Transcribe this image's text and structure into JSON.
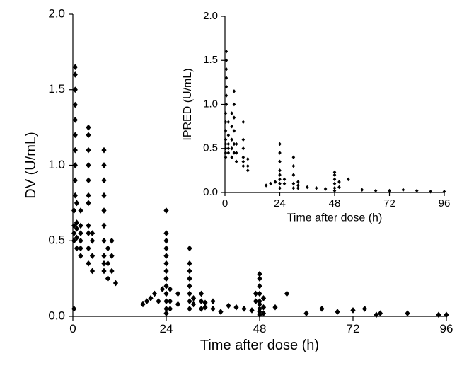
{
  "chart_data": [
    {
      "type": "scatter",
      "x_label": "Time after dose (h)",
      "y_label": "DV (U/mL)",
      "color": "#000000",
      "xlim": [
        0,
        96
      ],
      "xticks": [
        0,
        24,
        48,
        72,
        96
      ],
      "ylim": [
        0,
        2
      ],
      "yticks": [
        {
          "value": 0,
          "label": "0.0"
        },
        {
          "value": 0.5,
          "label": "0.5"
        },
        {
          "value": 1,
          "label": "1.0"
        },
        {
          "value": 1.5,
          "label": "1.5"
        },
        {
          "value": 2,
          "label": "2.0"
        }
      ],
      "x": [
        0.3,
        0.3,
        0.3,
        0.3,
        0.3,
        0.6,
        0.6,
        0.6,
        0.6,
        0.6,
        0.6,
        0.6,
        0.6,
        0.6,
        0.6,
        1,
        1,
        1,
        1,
        1,
        2,
        2,
        2,
        2,
        2,
        2,
        4,
        4,
        4,
        4,
        4,
        4,
        4,
        4,
        4,
        4,
        4,
        5,
        5,
        5,
        5,
        8,
        8,
        8,
        8,
        8,
        8,
        8,
        8,
        8,
        8,
        9,
        9,
        9,
        10,
        10,
        10,
        11,
        18,
        19,
        20,
        21,
        22,
        23,
        24,
        24,
        24,
        24,
        24,
        24,
        24,
        24,
        24,
        24,
        24,
        24,
        24,
        25,
        25,
        25,
        27,
        27,
        30,
        30,
        30,
        30,
        30,
        30,
        30,
        30,
        31,
        31,
        33,
        33,
        33,
        34,
        34,
        36,
        36,
        38,
        40,
        42,
        44,
        46,
        47,
        47,
        48,
        48,
        48,
        48,
        48,
        48,
        48,
        48,
        48,
        49,
        49,
        49,
        52,
        55,
        60,
        64,
        68,
        72,
        75,
        78,
        79,
        86,
        94,
        96
      ],
      "values": [
        0.05,
        0.5,
        0.55,
        0.6,
        0.7,
        0.8,
        0.9,
        1.0,
        1.1,
        1.2,
        1.3,
        1.4,
        1.5,
        1.6,
        1.65,
        0.45,
        0.52,
        0.58,
        0.62,
        0.75,
        0.5,
        0.55,
        0.6,
        0.7,
        0.45,
        0.4,
        0.35,
        0.45,
        0.55,
        0.6,
        0.75,
        0.8,
        0.9,
        1.0,
        1.1,
        1.2,
        1.25,
        0.3,
        0.4,
        0.5,
        0.55,
        0.3,
        0.35,
        0.4,
        0.5,
        0.6,
        0.7,
        0.8,
        0.9,
        1.0,
        1.1,
        0.25,
        0.35,
        0.45,
        0.3,
        0.4,
        0.5,
        0.22,
        0.08,
        0.1,
        0.12,
        0.15,
        0.1,
        0.18,
        0.02,
        0.05,
        0.1,
        0.15,
        0.2,
        0.25,
        0.3,
        0.35,
        0.4,
        0.45,
        0.5,
        0.55,
        0.7,
        0.05,
        0.1,
        0.18,
        0.08,
        0.15,
        0.05,
        0.1,
        0.15,
        0.2,
        0.25,
        0.3,
        0.35,
        0.45,
        0.08,
        0.12,
        0.05,
        0.1,
        0.15,
        0.06,
        0.09,
        0.05,
        0.1,
        0.03,
        0.07,
        0.06,
        0.05,
        0.04,
        0.1,
        0.15,
        0.01,
        0.03,
        0.05,
        0.08,
        0.1,
        0.15,
        0.2,
        0.25,
        0.28,
        0.02,
        0.06,
        0.12,
        0.06,
        0.15,
        0.02,
        0.05,
        0.03,
        0.04,
        0.05,
        0.01,
        0.02,
        0.02,
        0.01,
        0.01
      ]
    },
    {
      "type": "scatter",
      "x_label": "Time after dose (h)",
      "y_label": "IPRED (U/mL)",
      "color": "#000000",
      "xlim": [
        0,
        96
      ],
      "xticks": [
        0,
        24,
        48,
        72,
        96
      ],
      "ylim": [
        0,
        2
      ],
      "yticks": [
        {
          "value": 0,
          "label": "0.0"
        },
        {
          "value": 0.5,
          "label": "0.5"
        },
        {
          "value": 1,
          "label": "1.0"
        },
        {
          "value": 1.5,
          "label": "1.5"
        },
        {
          "value": 2,
          "label": "2.0"
        }
      ],
      "x": [
        0.3,
        0.3,
        0.3,
        0.3,
        0.3,
        0.3,
        0.3,
        0.3,
        0.6,
        0.6,
        0.6,
        0.6,
        0.6,
        0.6,
        0.6,
        1.5,
        1.5,
        1.5,
        1.5,
        1.5,
        3,
        3,
        3,
        3,
        3,
        4,
        4,
        4,
        4,
        4,
        4,
        5,
        5,
        5,
        8,
        8,
        8,
        8,
        8,
        8,
        10,
        10,
        10,
        18,
        20,
        22,
        24,
        24,
        24,
        24,
        24,
        24,
        24,
        24,
        26,
        26,
        30,
        30,
        30,
        30,
        30,
        32,
        32,
        32,
        36,
        40,
        44,
        48,
        48,
        48,
        48,
        48,
        48,
        50,
        50,
        54,
        60,
        66,
        72,
        78,
        84,
        90,
        96
      ],
      "values": [
        0.4,
        0.45,
        0.5,
        0.55,
        0.6,
        0.7,
        0.8,
        0.9,
        1.0,
        1.1,
        1.2,
        1.3,
        1.4,
        1.5,
        1.6,
        0.45,
        0.5,
        0.55,
        0.65,
        0.8,
        0.4,
        0.5,
        0.6,
        0.75,
        0.9,
        0.45,
        0.55,
        0.7,
        0.85,
        1.0,
        1.15,
        0.35,
        0.45,
        0.55,
        0.3,
        0.35,
        0.4,
        0.5,
        0.6,
        0.8,
        0.25,
        0.3,
        0.38,
        0.08,
        0.1,
        0.12,
        0.05,
        0.1,
        0.15,
        0.2,
        0.25,
        0.35,
        0.45,
        0.55,
        0.1,
        0.15,
        0.05,
        0.1,
        0.2,
        0.3,
        0.4,
        0.05,
        0.08,
        0.12,
        0.06,
        0.05,
        0.04,
        0.02,
        0.05,
        0.1,
        0.15,
        0.2,
        0.23,
        0.06,
        0.12,
        0.15,
        0.03,
        0.02,
        0.02,
        0.03,
        0.02,
        0.01,
        0.01
      ]
    }
  ]
}
